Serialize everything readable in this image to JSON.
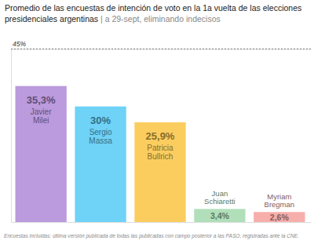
{
  "chart_data": {
    "type": "bar",
    "title": "Promedio de las encuestas de intención de voto en la 1a vuelta de las elecciones presidenciales argentinas",
    "subtitle": "| a 29-sept, eliminando indecisos",
    "caption": "Encuestas incluidas: última versión publicada de todas las publicadas con campo posterior a las PASO, registradas ante la CNE.",
    "categories": [
      "Javier Milei",
      "Sergio Massa",
      "Patricia Bullrich",
      "Juan Schiaretti",
      "Myriam Bregman"
    ],
    "values": [
      35.3,
      30,
      25.9,
      3.4,
      2.6
    ],
    "value_labels": [
      "35,3%",
      "30%",
      "25,9%",
      "3,4%",
      "2,6%"
    ],
    "colors": [
      "#b48fd9",
      "#5fcdf6",
      "#fbc84e",
      "#a9dcb2",
      "#f5a6a2"
    ],
    "ylim": [
      0,
      45
    ],
    "yticks": [
      {
        "value": 45,
        "label": "45%"
      }
    ],
    "grid": true,
    "data_labels": true
  }
}
